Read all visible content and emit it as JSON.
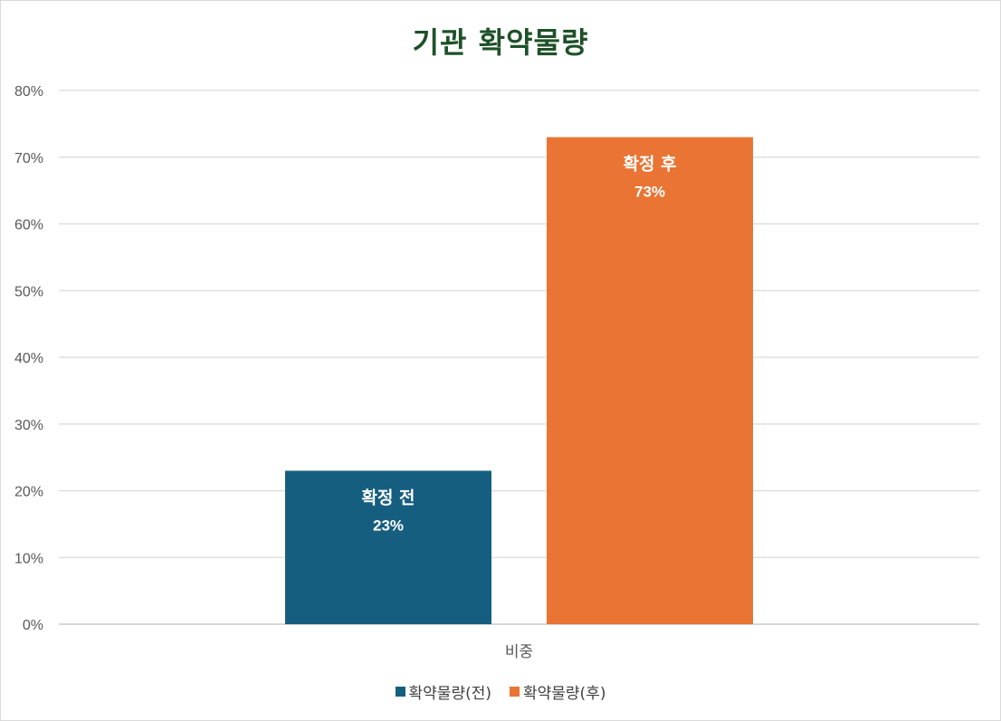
{
  "chart_data": {
    "type": "bar",
    "title": "기관 확약물량",
    "categories": [
      "비중"
    ],
    "series": [
      {
        "name": "확약물량(전)",
        "values": [
          0.23
        ],
        "color": "#165e80",
        "bar_label": "확정 전",
        "value_label": "23%"
      },
      {
        "name": "확약물량(후)",
        "values": [
          0.73
        ],
        "color": "#e97434",
        "bar_label": "확정 후",
        "value_label": "73%"
      }
    ],
    "ylim": [
      0,
      0.8
    ],
    "yticks": [
      "0%",
      "10%",
      "20%",
      "30%",
      "40%",
      "50%",
      "60%",
      "70%",
      "80%"
    ],
    "grid": true,
    "legend_position": "bottom"
  }
}
